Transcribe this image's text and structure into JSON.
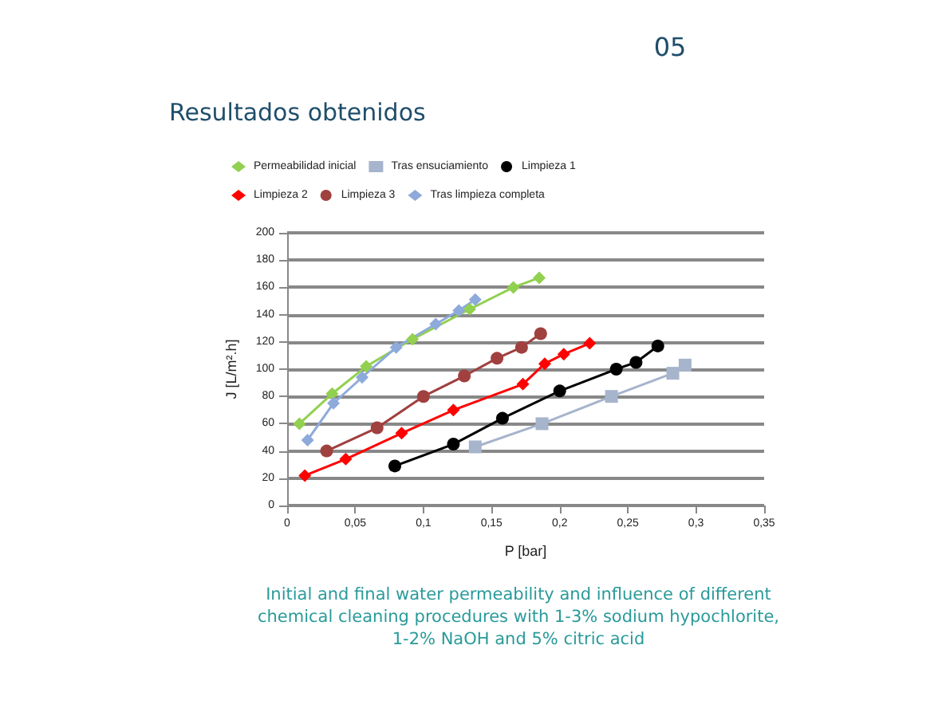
{
  "chart_data": {
    "type": "line",
    "title": "Resultados obtenidos",
    "xlabel": "P [bar]",
    "ylabel": "J [L/m².h]",
    "annotations": [
      "05",
      "Initial and final water permeability and influence of different chemical cleaning procedures with 1-3% sodium hypochlorite, 1-2% NaOH and 5% citric acid"
    ],
    "series": [
      {
        "name": "Permeabilidad inicial",
        "color": "#92d050",
        "marker": "diamond",
        "x": [
          0.009,
          0.033,
          0.058,
          0.092,
          0.134,
          0.166,
          0.185
        ],
        "values": [
          60,
          82,
          102,
          122,
          144,
          160,
          167
        ]
      },
      {
        "name": "Tras ensuciamiento",
        "color": "#a6b4cc",
        "marker": "square",
        "x": [
          0.138,
          0.187,
          0.238,
          0.283,
          0.292
        ],
        "values": [
          43,
          60,
          80,
          97,
          103
        ]
      },
      {
        "name": "Limpieza 1",
        "color": "#000000",
        "marker": "circle",
        "x": [
          0.079,
          0.122,
          0.158,
          0.2,
          0.2415,
          0.256,
          0.272
        ],
        "values": [
          29,
          45,
          64,
          84,
          100,
          105,
          117
        ]
      },
      {
        "name": "Limpieza 2",
        "color": "#ff0000",
        "marker": "diamond",
        "x": [
          0.013,
          0.043,
          0.084,
          0.122,
          0.173,
          0.189,
          0.203,
          0.222
        ],
        "values": [
          22,
          34,
          53,
          70,
          89,
          104,
          111,
          119
        ]
      },
      {
        "name": "Limpieza 3",
        "color": "#a0403f",
        "marker": "circle",
        "x": [
          0.029,
          0.066,
          0.1,
          0.13,
          0.154,
          0.172,
          0.186
        ],
        "values": [
          40,
          57,
          80,
          95,
          108,
          116,
          126
        ]
      },
      {
        "name": "Tras limpieza completa",
        "color": "#8eaadb",
        "marker": "diamond",
        "x": [
          0.015,
          0.034,
          0.055,
          0.08,
          0.109,
          0.126,
          0.138
        ],
        "values": [
          48,
          75,
          94,
          116,
          133,
          143,
          151
        ]
      }
    ],
    "xlim": [
      0,
      0.35
    ],
    "xticks": [
      0,
      {
        "value": 0.05,
        "label": "0,05"
      },
      {
        "value": 0.1,
        "label": "0,1"
      },
      {
        "value": 0.15,
        "label": "0,15"
      },
      {
        "value": 0.2,
        "label": "0,2"
      },
      {
        "value": 0.25,
        "label": "0,25"
      },
      {
        "value": 0.3,
        "label": "0,3"
      },
      {
        "value": 0.35,
        "label": "0,35"
      }
    ],
    "ylim": [
      0,
      200
    ],
    "yticks": [
      0,
      20,
      40,
      60,
      80,
      100,
      120,
      140,
      160,
      180,
      200
    ],
    "grid": "y",
    "legend": "top",
    "line_style": "solid"
  }
}
